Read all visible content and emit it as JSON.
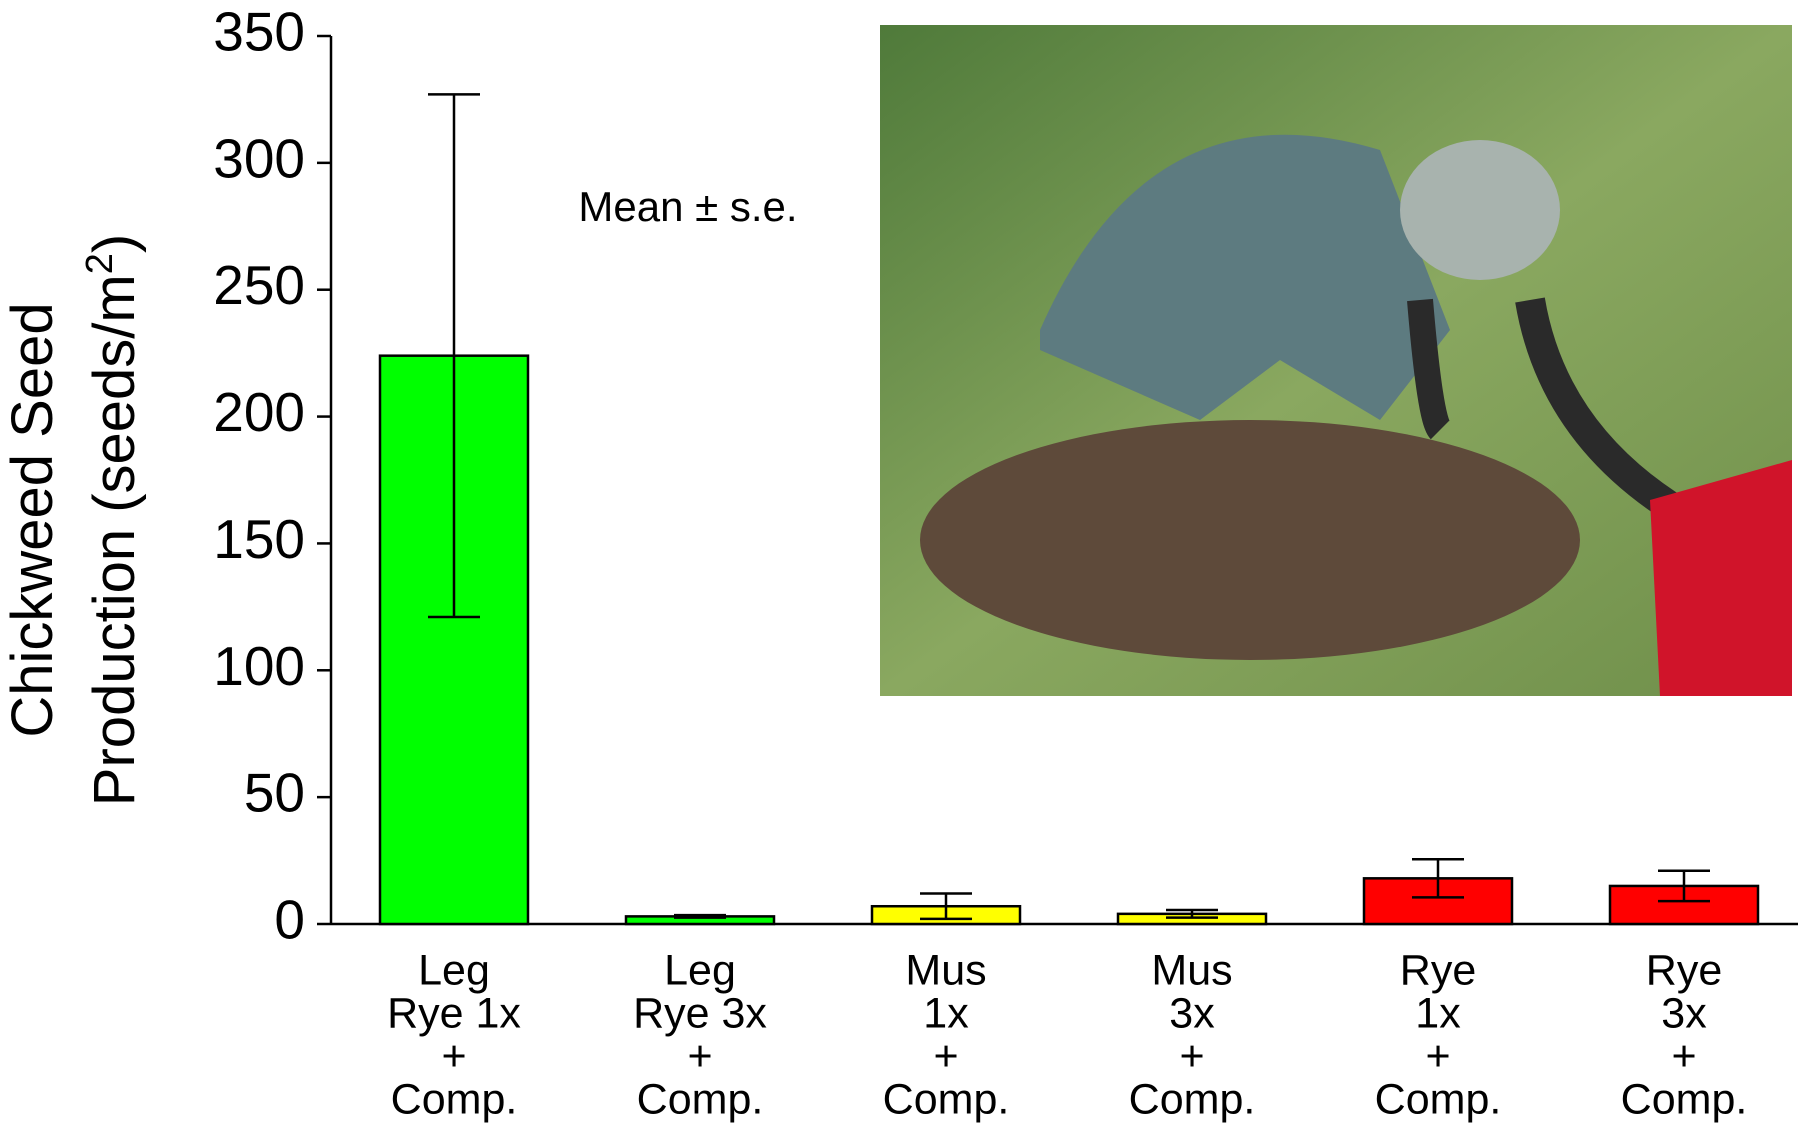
{
  "chart_data": {
    "type": "bar",
    "y_label": {
      "line1": "Chickweed Seed",
      "line2": "Production (seeds/m",
      "superscript": "2",
      "line2_end": ")"
    },
    "annotation": "Mean ± s.e.",
    "categories": [
      [
        "Leg",
        "Rye 1x",
        "+",
        "Comp."
      ],
      [
        "Leg",
        "Rye 3x",
        "+",
        "Comp."
      ],
      [
        "Mus",
        "1x",
        "+",
        "Comp."
      ],
      [
        "Mus",
        "3x",
        "+",
        "Comp."
      ],
      [
        "Rye",
        "1x",
        "+",
        "Comp."
      ],
      [
        "Rye",
        "3x",
        "+",
        "Comp."
      ]
    ],
    "values": [
      224,
      3,
      7,
      4,
      18,
      15
    ],
    "errors": [
      103,
      0.5,
      5,
      1.5,
      7.5,
      6
    ],
    "colors": [
      "#00ff00",
      "#00ff00",
      "#ffff00",
      "#ffff00",
      "#ff0000",
      "#ff0000"
    ],
    "ylim": [
      0,
      350
    ],
    "yticks": [
      0,
      50,
      100,
      150,
      200,
      250,
      300,
      350
    ]
  }
}
